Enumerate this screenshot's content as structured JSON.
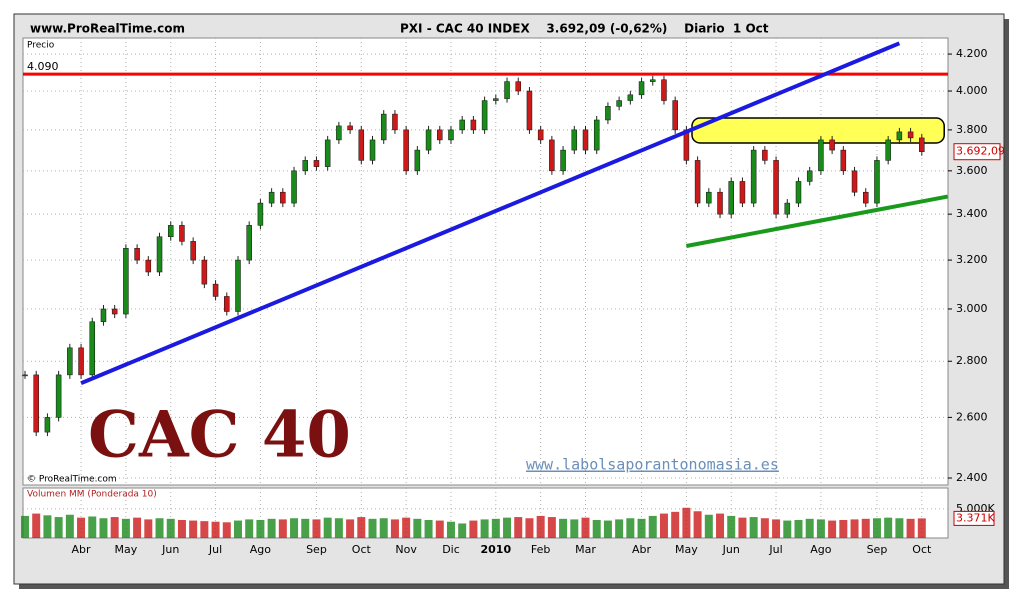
{
  "header": {
    "site": "www.ProRealTime.com",
    "title": "PXI - CAC 40 INDEX    3.692,09 (-0,62%)    Diario  1 Oct"
  },
  "chart_data": [
    {
      "type": "candle",
      "axis_label": "Precio",
      "copyright": "© ProRealTime.com",
      "watermark": "CAC 40",
      "site_link": "www.labolsaporantonomasia.es",
      "log_scale": true,
      "grid": true,
      "up_color": "#1a8a1a",
      "down_color": "#cc1a1a",
      "categories": [
        null,
        null,
        null,
        null,
        null,
        "Abr",
        null,
        null,
        null,
        "May",
        null,
        null,
        null,
        "Jun",
        null,
        null,
        null,
        "Jul",
        null,
        null,
        null,
        "Ago",
        null,
        null,
        null,
        null,
        "Sep",
        null,
        null,
        null,
        "Oct",
        null,
        null,
        null,
        "Nov",
        null,
        null,
        null,
        "Dic",
        null,
        null,
        null,
        "2010",
        null,
        null,
        null,
        "Feb",
        null,
        null,
        null,
        "Mar",
        null,
        null,
        null,
        null,
        "Abr",
        null,
        null,
        null,
        "May",
        null,
        null,
        null,
        "Jun",
        null,
        null,
        null,
        "Jul",
        null,
        null,
        null,
        "Ago",
        null,
        null,
        null,
        null,
        "Sep",
        null,
        null,
        null,
        "Oct"
      ],
      "values": [
        2750,
        2550,
        2600,
        2750,
        2850,
        2750,
        2950,
        3000,
        2980,
        3250,
        3200,
        3150,
        3300,
        3350,
        3280,
        3200,
        3100,
        3050,
        2990,
        3200,
        3350,
        3450,
        3500,
        3450,
        3600,
        3650,
        3620,
        3750,
        3820,
        3800,
        3650,
        3750,
        3880,
        3800,
        3600,
        3700,
        3800,
        3750,
        3800,
        3850,
        3800,
        3950,
        3960,
        4050,
        4000,
        3800,
        3750,
        3600,
        3700,
        3800,
        3700,
        3850,
        3920,
        3950,
        3980,
        4050,
        4060,
        3950,
        3800,
        3650,
        3450,
        3500,
        3400,
        3550,
        3450,
        3700,
        3650,
        3400,
        3450,
        3550,
        3600,
        3750,
        3700,
        3600,
        3500,
        3450,
        3650,
        3750,
        3790,
        3760,
        3692.09
      ],
      "last_label": {
        "value": 3692.09,
        "label": "3.692,09"
      },
      "ylim": [
        2378,
        4290
      ],
      "yticks": [
        {
          "value": 2400,
          "label": "2.400"
        },
        {
          "value": 2600,
          "label": "2.600"
        },
        {
          "value": 2800,
          "label": "2.800"
        },
        {
          "value": 3000,
          "label": "3.000"
        },
        {
          "value": 3200,
          "label": "3.200"
        },
        {
          "value": 3400,
          "label": "3.400"
        },
        {
          "value": 3600,
          "label": "3.600"
        },
        {
          "value": 3800,
          "label": "3.800"
        },
        {
          "value": 4000,
          "label": "4.000"
        },
        {
          "value": 4200,
          "label": "4.200"
        }
      ],
      "resistance": {
        "value": 4090,
        "label": "4.090",
        "color": "#ff0000"
      },
      "trendlines": [
        {
          "color": "#1a1ae0",
          "x": [
            5,
            78
          ],
          "y": [
            2720,
            4260
          ]
        },
        {
          "color": "#1a9a1a",
          "x": [
            59,
            82.3
          ],
          "y": [
            3260,
            3480
          ]
        }
      ],
      "zone": {
        "color": "#ffff55",
        "x": [
          59.5,
          82
        ],
        "y": [
          3735,
          3860
        ]
      }
    },
    {
      "type": "volume",
      "axis_label": "Volumen MM (Ponderada 10)",
      "up_color": "#1a8a1a",
      "down_color": "#cc1a1a",
      "values": [
        3800,
        4200,
        3900,
        3600,
        4000,
        3500,
        3700,
        3400,
        3600,
        3300,
        3500,
        3200,
        3400,
        3300,
        3100,
        3000,
        2900,
        2800,
        2700,
        3000,
        3200,
        3100,
        3300,
        3200,
        3400,
        3300,
        3200,
        3500,
        3400,
        3200,
        3600,
        3300,
        3400,
        3200,
        3500,
        3300,
        3100,
        3000,
        2800,
        2500,
        3000,
        3200,
        3300,
        3500,
        3600,
        3400,
        3800,
        3600,
        3300,
        3200,
        3500,
        3100,
        3000,
        3200,
        3400,
        3300,
        3800,
        4200,
        4500,
        5200,
        4600,
        4000,
        4200,
        3800,
        3500,
        3600,
        3400,
        3200,
        3000,
        3100,
        3300,
        3200,
        3000,
        3100,
        3200,
        3300,
        3400,
        3500,
        3400,
        3300,
        3371
      ],
      "last_label": {
        "value": 3371,
        "label": "3.371K"
      },
      "ylim": [
        0,
        8600
      ],
      "yticks": [
        {
          "value": 5000,
          "label": "5.000K"
        }
      ]
    }
  ]
}
